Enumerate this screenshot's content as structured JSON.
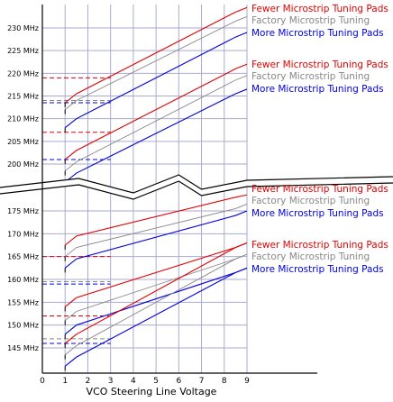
{
  "chart_data": {
    "type": "line",
    "title": "",
    "xlabel": "VCO Steering Line Voltage",
    "ylabel": "",
    "xlim": [
      0,
      9
    ],
    "x_ticks": [
      "0",
      "1",
      "2",
      "3",
      "4",
      "5",
      "6",
      "7",
      "8",
      "9"
    ],
    "grid": true,
    "axis_break_between_mhz": [
      180,
      197
    ],
    "y_ticks_upper": [
      "230 MHz",
      "225 MHz",
      "220 MHz",
      "215 MHz",
      "210 MHz",
      "205 MHz",
      "200 MHz"
    ],
    "y_ticks_lower": [
      "175 MHz",
      "170 MHz",
      "165 MHz",
      "160 MHz",
      "155 MHz",
      "150 MHz",
      "145 MHz"
    ],
    "legend_labels": {
      "fewer": "Fewer Microstrip Tuning Pads",
      "factory": "Factory Microstrip Tuning",
      "more": "More Microstrip Tuning Pads"
    },
    "colors": {
      "fewer": "#e00000",
      "factory": "#888888",
      "more": "#0000e0",
      "grid": "#aaaad0",
      "reference": "#000000"
    },
    "bands": [
      {
        "voltage": [
          1.0,
          1.5,
          8.5,
          9.0
        ],
        "fewer": [
          213.5,
          215.5,
          233.5,
          234.5
        ],
        "factory": [
          212,
          214,
          231.5,
          232.5
        ],
        "more": [
          208,
          210,
          228,
          229
        ],
        "marker_mhz": {
          "fewer": 219,
          "factory": 214,
          "more": 213.5
        }
      },
      {
        "voltage": [
          1.0,
          1.5,
          8.5,
          9.0
        ],
        "fewer": [
          201,
          203,
          221,
          222
        ],
        "factory": [
          198.5,
          200.5,
          218.5,
          219.5
        ],
        "more": [
          196,
          198,
          215.5,
          216.5
        ],
        "marker_mhz": {
          "fewer": 207,
          "factory": 201,
          "more": 201
        }
      },
      {
        "voltage": [
          1.0,
          1.5,
          8.5,
          9.0
        ],
        "fewer": [
          167.5,
          169.5,
          178,
          178.5
        ],
        "factory": [
          165,
          167,
          175.5,
          176.5
        ],
        "more": [
          162.5,
          164.5,
          174,
          175
        ],
        "marker_mhz": {
          "fewer": 165,
          "factory": 159.5,
          "more": 159
        }
      },
      {
        "voltage": [
          1.0,
          1.5,
          8.5,
          9.0
        ],
        "fewer": [
          154,
          156,
          167,
          168
        ],
        "factory": [
          151,
          153,
          164.5,
          165.5
        ],
        "more": [
          148,
          150,
          161.5,
          162.5
        ],
        "marker_mhz": {
          "fewer": 152,
          "factory": 147,
          "more": 146
        }
      },
      {
        "voltage": [
          1.0,
          1.5,
          8.5,
          9.0
        ],
        "fewer": [
          146,
          148,
          167,
          168
        ],
        "factory": [
          143.5,
          145.5,
          164.5,
          165.5
        ],
        "more": [
          141,
          143,
          161.5,
          162.5
        ],
        "marker_mhz": {}
      }
    ]
  }
}
